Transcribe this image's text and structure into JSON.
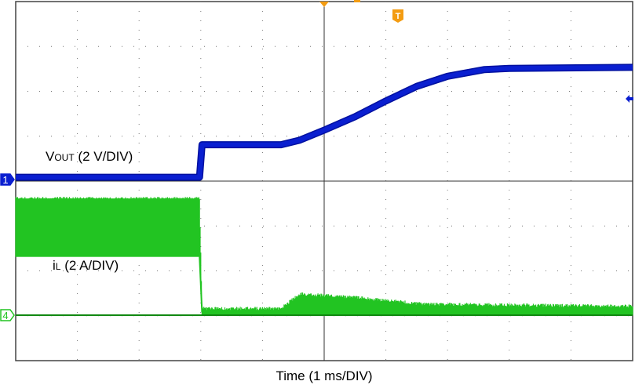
{
  "chart_data": {
    "type": "line",
    "title": "",
    "xlabel": "Time (1 ms/DIV)",
    "xlim": [
      -5,
      5
    ],
    "x_unit": "ms",
    "grid": true,
    "grid_divisions": {
      "x": 10,
      "y": 8
    },
    "series": [
      {
        "name": "VOUT (2 V/DIV)",
        "label_main": "V",
        "label_sub": "OUT",
        "label_rest": " (2 V/DIV)",
        "channel": "1",
        "color": "#0a1fd0",
        "scale_per_div": 2,
        "unit": "V",
        "points": [
          [
            -5,
            0.1
          ],
          [
            -2.02,
            0.1
          ],
          [
            -1.98,
            1.55
          ],
          [
            -0.7,
            1.55
          ],
          [
            -0.4,
            1.75
          ],
          [
            0,
            2.2
          ],
          [
            0.5,
            2.8
          ],
          [
            1,
            3.5
          ],
          [
            1.5,
            4.15
          ],
          [
            2,
            4.6
          ],
          [
            2.6,
            4.9
          ],
          [
            3,
            4.95
          ],
          [
            5,
            5.0
          ]
        ]
      },
      {
        "name": "iL (2 A/DIV)",
        "label_main": "i",
        "label_sub": "L",
        "label_rest": " (2 A/DIV)",
        "channel": "4",
        "color": "#22c422",
        "scale_per_div": 2,
        "unit": "A",
        "envelope": [
          [
            -5,
            2.6,
            5.2
          ],
          [
            -2.02,
            2.6,
            5.2
          ],
          [
            -1.98,
            0,
            0.3
          ],
          [
            -0.7,
            0,
            0.3
          ],
          [
            -0.4,
            0,
            0.95
          ],
          [
            0.5,
            0,
            0.8
          ],
          [
            1.6,
            0,
            0.5
          ],
          [
            5,
            0,
            0.4
          ]
        ]
      }
    ],
    "markers": {
      "trigger": "T",
      "channel1_ref": "1",
      "channel4_ref": "4"
    }
  },
  "colors": {
    "trigger": "#f39c12",
    "grid": "#555555"
  }
}
